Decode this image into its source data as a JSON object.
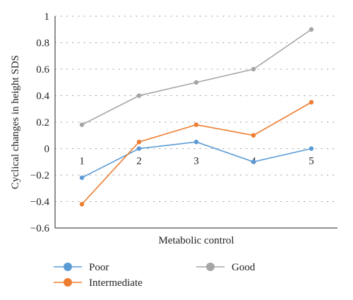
{
  "chart_data": {
    "type": "line",
    "title": "",
    "xlabel": "Metabolic control",
    "ylabel": "Cyclical changes in height SDS",
    "categories": [
      "1",
      "2",
      "3",
      "4",
      "5"
    ],
    "ylim": [
      -0.6,
      1
    ],
    "yticks": [
      1,
      0.8,
      0.6,
      0.4,
      0.2,
      0,
      -0.2,
      -0.4,
      -0.6
    ],
    "ytick_labels": [
      "1",
      "0.8",
      "0.6",
      "0.4",
      "0.2",
      "0",
      "−0.2",
      "−0.4",
      "−0.6"
    ],
    "grid": "horizontal-dotted",
    "legend": "bottom",
    "series": [
      {
        "name": "Poor",
        "color": "#5b9bd5",
        "values": [
          -0.22,
          0.0,
          0.05,
          -0.1,
          0.0
        ]
      },
      {
        "name": "Intermediate",
        "color": "#ed7d31",
        "values": [
          -0.42,
          0.05,
          0.18,
          0.1,
          0.35
        ]
      },
      {
        "name": "Good",
        "color": "#a5a5a5",
        "values": [
          0.18,
          0.4,
          0.5,
          0.6,
          0.9
        ]
      }
    ]
  }
}
